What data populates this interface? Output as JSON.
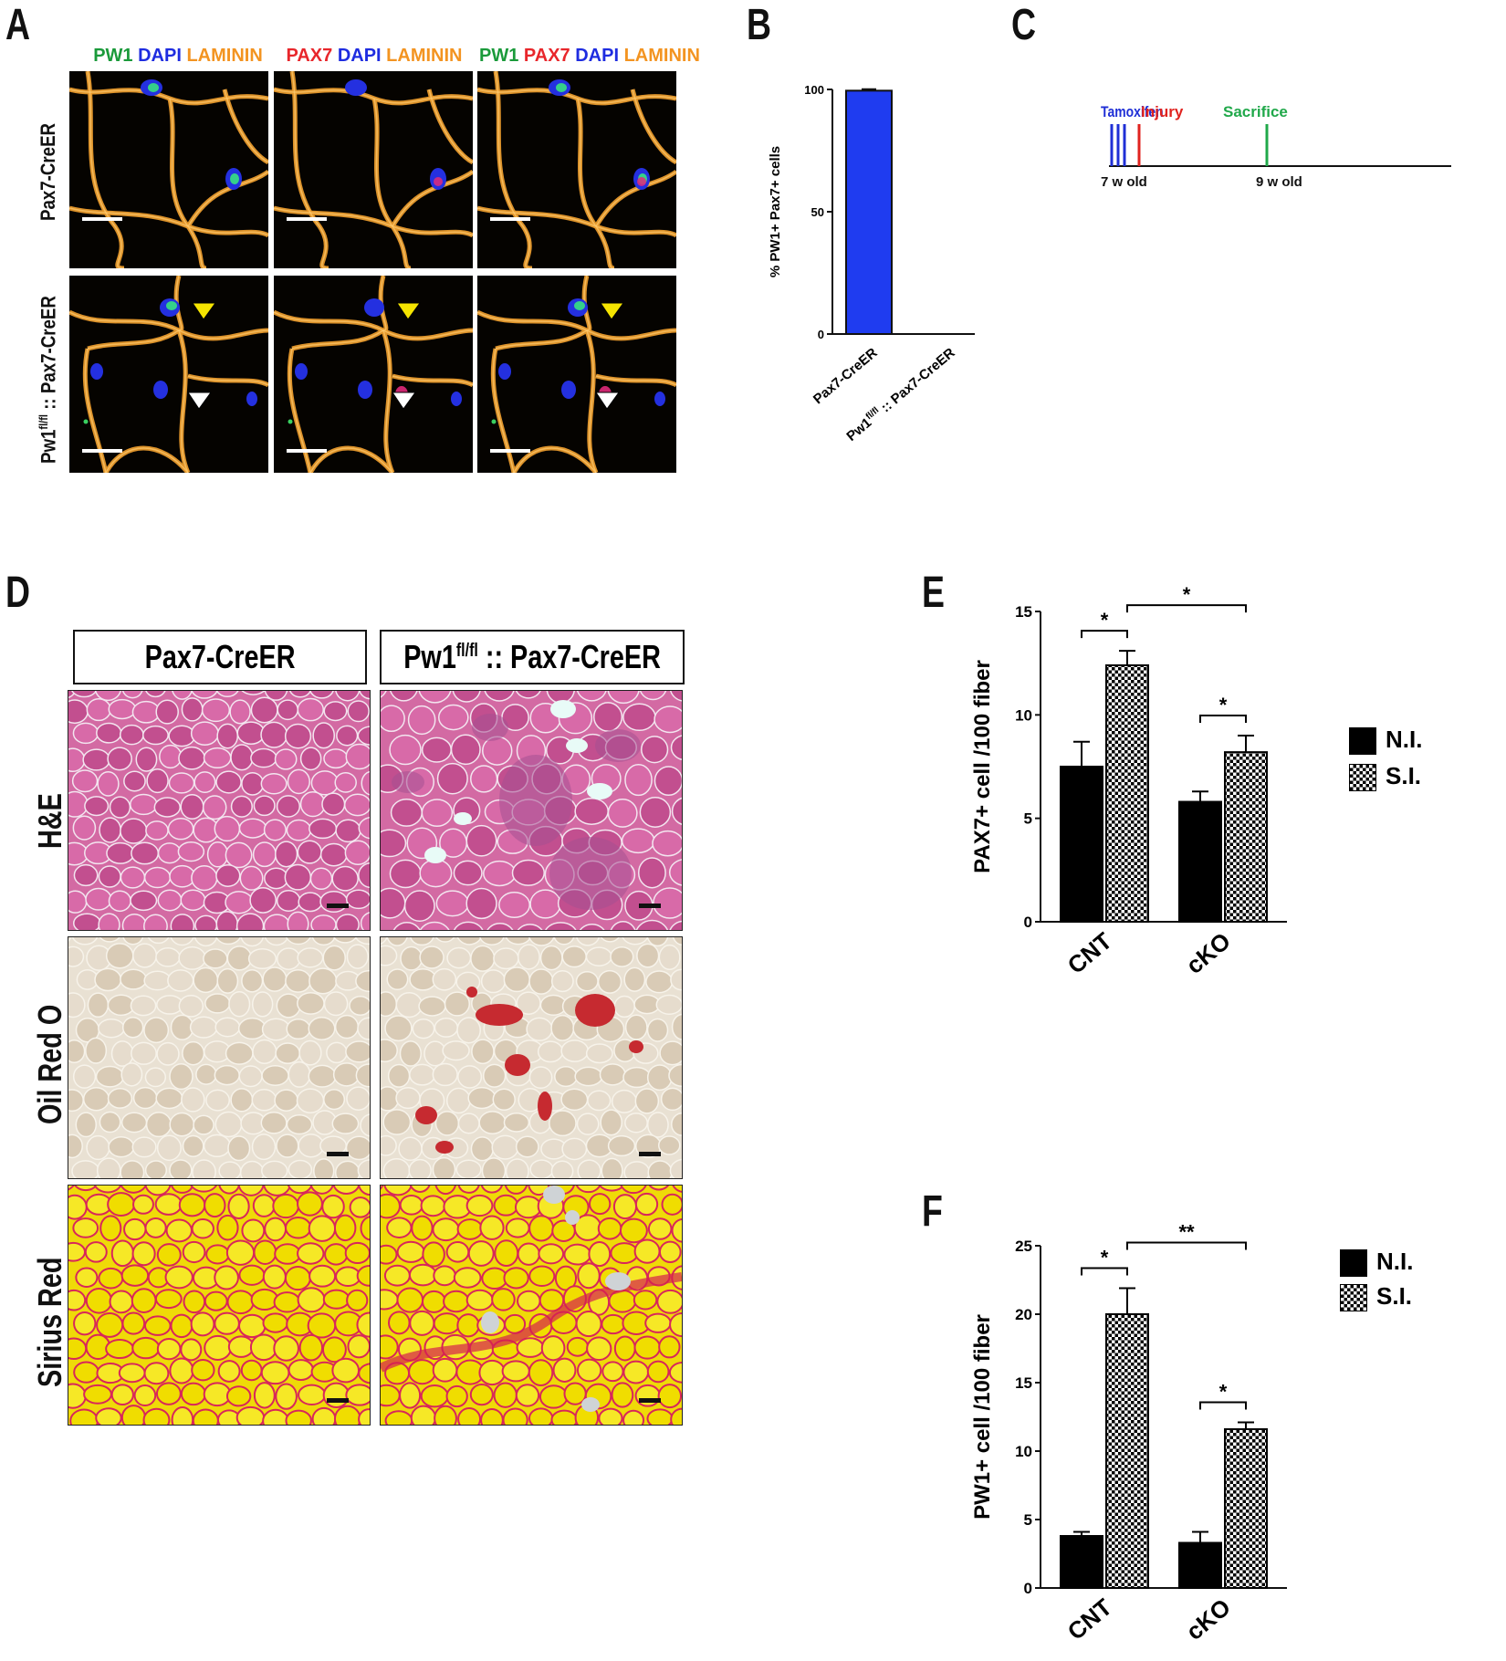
{
  "panels": {
    "A": "A",
    "B": "B",
    "C": "C",
    "D": "D",
    "E": "E",
    "F": "F"
  },
  "panelA": {
    "columns": [
      [
        {
          "t": "PW1",
          "c": "#1a9a3a"
        },
        {
          "t": " DAPI",
          "c": "#1e2ce0"
        },
        {
          "t": " LAMININ",
          "c": "#f39421"
        }
      ],
      [
        {
          "t": "PAX7",
          "c": "#e8262b"
        },
        {
          "t": " DAPI",
          "c": "#1e2ce0"
        },
        {
          "t": " LAMININ",
          "c": "#f39421"
        }
      ],
      [
        {
          "t": "PW1",
          "c": "#1a9a3a"
        },
        {
          "t": " PAX7",
          "c": "#e8262b"
        },
        {
          "t": " DAPI",
          "c": "#1e2ce0"
        },
        {
          "t": " LAMININ",
          "c": "#f39421"
        }
      ]
    ],
    "row1_label": "Pax7-CreER",
    "row2_label_prefix": "Pw1",
    "row2_label_sup": "fl/fl",
    "row2_label_suffix": " :: Pax7-CreER",
    "colors": {
      "laminin": "#e89a2c",
      "dapi": "#2430e0",
      "pw1": "#35d08a",
      "pax7": "#e02a7a",
      "yellow_arrow": "#f5e400",
      "white_arrow": "#ffffff"
    }
  },
  "panelB": {
    "ylabel": "% PW1+ Pax7+ cells",
    "yticks": [
      "0",
      "50",
      "100"
    ],
    "categories": [
      "Pax7-CreER",
      "Pw1",
      "fl/fl",
      " :: Pax7-CreER"
    ],
    "bar_color": "#1f3cf0"
  },
  "panelC": {
    "tamoxifen": "Tamoxifen",
    "injury": "Injury",
    "sacrifice": "Sacrifice",
    "start": "7 w old",
    "end": "9 w old",
    "colors": {
      "tamoxifen": "#1f2fd6",
      "injury": "#e0231f",
      "sacrifice": "#20a84a"
    }
  },
  "panelD": {
    "col1": "Pax7-CreER",
    "col2_prefix": "Pw1",
    "col2_sup": "fl/fl",
    "col2_suffix": " :: Pax7-CreER",
    "rows": [
      "H&E",
      "Oil Red O",
      "Sirius Red"
    ]
  },
  "chart_data": [
    {
      "id": "B",
      "type": "bar",
      "title": "",
      "ylabel": "% PW1+ Pax7+ cells",
      "categories": [
        "Pax7-CreER",
        "Pw1fl/fl :: Pax7-CreER"
      ],
      "values": [
        99.5,
        0
      ],
      "errors": [
        0.6,
        0
      ],
      "ylim": [
        0,
        100
      ],
      "yticks": [
        0,
        50,
        100
      ]
    },
    {
      "id": "E",
      "type": "bar",
      "title": "",
      "ylabel": "PAX7+ cell /100 fiber",
      "categories": [
        "CNT",
        "cKO"
      ],
      "series": [
        {
          "name": "N.I.",
          "values": [
            7.5,
            5.8
          ],
          "errors": [
            1.2,
            0.5
          ]
        },
        {
          "name": "S.I.",
          "values": [
            12.4,
            8.2
          ],
          "errors": [
            0.7,
            0.8
          ]
        }
      ],
      "ylim": [
        0,
        15
      ],
      "yticks": [
        0,
        5,
        10,
        15
      ],
      "significance": [
        "*",
        "*",
        "*"
      ]
    },
    {
      "id": "F",
      "type": "bar",
      "title": "",
      "ylabel": "PW1+ cell /100 fiber",
      "categories": [
        "CNT",
        "cKO"
      ],
      "series": [
        {
          "name": "N.I.",
          "values": [
            3.8,
            3.3
          ],
          "errors": [
            0.3,
            0.8
          ]
        },
        {
          "name": "S.I.",
          "values": [
            20.0,
            11.6
          ],
          "errors": [
            1.9,
            0.5
          ]
        }
      ],
      "ylim": [
        0,
        25
      ],
      "yticks": [
        0,
        5,
        10,
        15,
        20,
        25
      ],
      "significance": [
        "*",
        "**",
        "*"
      ]
    }
  ]
}
